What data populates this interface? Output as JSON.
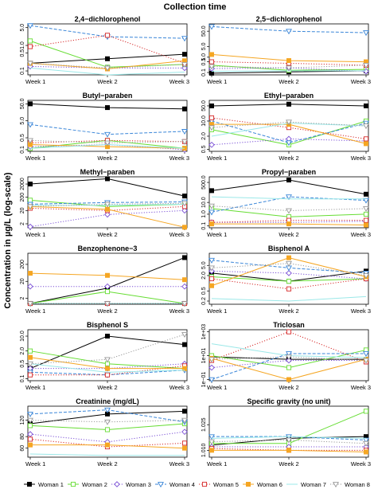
{
  "figure": {
    "title": "Collection time",
    "ylabel": "Concentration in µg/L (log-scale)",
    "x_categories": [
      "Week 1",
      "Week 2",
      "Week 3"
    ]
  },
  "legend": [
    {
      "name": "Woman 1",
      "color": "#000000",
      "marker": "square-filled",
      "dash": "solid"
    },
    {
      "name": "Woman 2",
      "color": "#66dd33",
      "marker": "square-open",
      "dash": "solid"
    },
    {
      "name": "Woman 3",
      "color": "#7a4fd6",
      "marker": "diamond-open",
      "dash": "dotted"
    },
    {
      "name": "Woman 4",
      "color": "#3a86d8",
      "marker": "triangle-down-open",
      "dash": "dashed"
    },
    {
      "name": "Woman 5",
      "color": "#d62828",
      "marker": "square-open",
      "dash": "dotted"
    },
    {
      "name": "Woman 6",
      "color": "#f5a623",
      "marker": "square-filled",
      "dash": "solid"
    },
    {
      "name": "Woman 7",
      "color": "#9be8e8",
      "marker": "none",
      "dash": "solid"
    },
    {
      "name": "Woman 8",
      "color": "#999999",
      "marker": "triangle-down-open",
      "dash": "dotted"
    }
  ],
  "chart_data": [
    {
      "type": "line",
      "title": "2,4−dichlorophenol",
      "ylog": true,
      "ylim": [
        0.07,
        7
      ],
      "yticks": [
        {
          "v": 0.1,
          "label": "0.1"
        },
        {
          "v": 0.5,
          "label": "0.5"
        },
        {
          "v": 1,
          "label": "1.0"
        },
        {
          "v": 5,
          "label": "5.0"
        }
      ],
      "series": [
        {
          "values": [
            0.2,
            0.3,
            0.45
          ]
        },
        {
          "values": [
            1.5,
            0.14,
            0.18
          ]
        },
        {
          "values": [
            0.15,
            0.13,
            0.13
          ]
        },
        {
          "values": [
            6.0,
            2.2,
            1.9
          ]
        },
        {
          "values": [
            0.9,
            2.5,
            0.2
          ]
        },
        {
          "values": [
            0.2,
            0.12,
            0.25
          ]
        },
        {
          "values": [
            0.13,
            0.07,
            0.09
          ]
        },
        {
          "values": [
            0.2,
            0.13,
            0.18
          ]
        }
      ]
    },
    {
      "type": "line",
      "title": "2,5−dichlorophenol",
      "ylog": true,
      "ylim": [
        0.07,
        150
      ],
      "yticks": [
        {
          "v": 0.1,
          "label": "0.1"
        },
        {
          "v": 0.5,
          "label": "0.5"
        },
        {
          "v": 1,
          "label": "1.0"
        },
        {
          "v": 5,
          "label": "5.0"
        },
        {
          "v": 50,
          "label": "50.0"
        }
      ],
      "series": [
        {
          "values": [
            0.09,
            0.11,
            0.13
          ]
        },
        {
          "values": [
            0.3,
            0.14,
            0.16
          ]
        },
        {
          "values": [
            0.18,
            0.2,
            0.12
          ]
        },
        {
          "values": [
            100,
            50,
            40
          ]
        },
        {
          "values": [
            0.5,
            0.4,
            0.3
          ]
        },
        {
          "values": [
            1.5,
            0.6,
            0.5
          ]
        },
        {
          "values": [
            0.12,
            0.13,
            0.13
          ]
        },
        {
          "values": [
            0.25,
            0.2,
            0.3
          ]
        }
      ]
    },
    {
      "type": "line",
      "title": "Butyl−paraben",
      "ylog": true,
      "ylim": [
        0.08,
        80
      ],
      "yticks": [
        {
          "v": 0.1,
          "label": "0.1"
        },
        {
          "v": 0.5,
          "label": "0.5"
        },
        {
          "v": 5,
          "label": "5.0"
        },
        {
          "v": 50,
          "label": "50.0"
        }
      ],
      "series": [
        {
          "values": [
            50,
            30,
            25
          ]
        },
        {
          "values": [
            0.12,
            0.35,
            0.12
          ]
        },
        {
          "values": [
            0.15,
            0.2,
            0.1
          ]
        },
        {
          "values": [
            3.0,
            0.8,
            1.2
          ]
        },
        {
          "values": [
            0.25,
            0.35,
            0.3
          ]
        },
        {
          "values": [
            0.2,
            0.15,
            0.12
          ]
        },
        {
          "values": [
            0.12,
            0.2,
            0.12
          ]
        },
        {
          "values": [
            0.35,
            0.25,
            0.3
          ]
        }
      ]
    },
    {
      "type": "line",
      "title": "Ethyl−paraben",
      "ylog": true,
      "ylim": [
        0.4,
        90
      ],
      "yticks": [
        {
          "v": 0.5,
          "label": "0.5"
        },
        {
          "v": 2,
          "label": "2.0"
        },
        {
          "v": 10,
          "label": "10.0"
        },
        {
          "v": 50,
          "label": "50.0"
        }
      ],
      "series": [
        {
          "values": [
            50,
            60,
            50
          ]
        },
        {
          "values": [
            4,
            0.8,
            10
          ]
        },
        {
          "values": [
            0.8,
            1.5,
            1.2
          ]
        },
        {
          "values": [
            10,
            1.0,
            8
          ]
        },
        {
          "values": [
            14,
            5,
            1.5
          ]
        },
        {
          "values": [
            7,
            7,
            0.9
          ]
        },
        {
          "values": [
            2,
            8,
            6
          ]
        },
        {
          "values": [
            5,
            9,
            6
          ]
        }
      ]
    },
    {
      "type": "line",
      "title": "Methyl−paraben",
      "ylog": true,
      "ylim": [
        1,
        7000
      ],
      "yticks": [
        {
          "v": 2,
          "label": "2"
        },
        {
          "v": 20,
          "label": "20"
        },
        {
          "v": 200,
          "label": "200"
        },
        {
          "v": 2000,
          "label": "2000"
        }
      ],
      "series": [
        {
          "values": [
            2000,
            5000,
            250
          ]
        },
        {
          "values": [
            120,
            40,
            60
          ]
        },
        {
          "values": [
            1.2,
            10,
            20
          ]
        },
        {
          "values": [
            60,
            80,
            90
          ]
        },
        {
          "values": [
            30,
            20,
            40
          ]
        },
        {
          "values": [
            40,
            25,
            1.1
          ]
        },
        {
          "values": [
            50,
            50,
            60
          ]
        },
        {
          "values": [
            40,
            60,
            70
          ]
        }
      ]
    },
    {
      "type": "line",
      "title": "Propyl−paraben",
      "ylog": true,
      "ylim": [
        0.07,
        1500
      ],
      "yticks": [
        {
          "v": 0.1,
          "label": "0.1"
        },
        {
          "v": 1,
          "label": "1.0"
        },
        {
          "v": 10,
          "label": "10.0"
        },
        {
          "v": 500,
          "label": "500.0"
        }
      ],
      "series": [
        {
          "values": [
            100,
            800,
            50
          ]
        },
        {
          "values": [
            3,
            0.6,
            1.0
          ]
        },
        {
          "values": [
            0.2,
            0.2,
            0.25
          ]
        },
        {
          "values": [
            1.5,
            30,
            15
          ]
        },
        {
          "values": [
            0.2,
            0.3,
            0.3
          ]
        },
        {
          "values": [
            0.15,
            0.15,
            0.12
          ]
        },
        {
          "values": [
            30,
            20,
            20
          ]
        },
        {
          "values": [
            5,
            2,
            3
          ]
        }
      ]
    },
    {
      "type": "line",
      "title": "Benzophenone−3",
      "ylog": true,
      "ylim": [
        0.9,
        900
      ],
      "yticks": [
        {
          "v": 2,
          "label": "2"
        },
        {
          "v": 20,
          "label": "20"
        },
        {
          "v": 200,
          "label": "200"
        }
      ],
      "series": [
        {
          "values": [
            1.0,
            8,
            500
          ]
        },
        {
          "values": [
            1.0,
            5,
            1.0
          ]
        },
        {
          "values": [
            10,
            10,
            10
          ]
        },
        {
          "values": [
            1.0,
            1.0,
            1.0
          ]
        },
        {
          "values": [
            1.0,
            1.0,
            1.0
          ]
        },
        {
          "values": [
            60,
            45,
            25
          ]
        },
        {
          "values": [
            1.0,
            1.0,
            1.0
          ]
        },
        {
          "values": [
            1.0,
            1.0,
            1.0
          ]
        }
      ]
    },
    {
      "type": "line",
      "title": "Bisphenol A",
      "ylog": true,
      "ylim": [
        0.15,
        15
      ],
      "yticks": [
        {
          "v": 0.2,
          "label": "0.2"
        },
        {
          "v": 0.5,
          "label": "0.5"
        },
        {
          "v": 2,
          "label": "2.0"
        },
        {
          "v": 5,
          "label": "5.0"
        }
      ],
      "series": [
        {
          "values": [
            2.5,
            1.2,
            3.0
          ]
        },
        {
          "values": [
            1.8,
            1.2,
            1.5
          ]
        },
        {
          "values": [
            3,
            2.5,
            1.5
          ]
        },
        {
          "values": [
            8,
            4,
            2.5
          ]
        },
        {
          "values": [
            1.5,
            0.6,
            1.5
          ]
        },
        {
          "values": [
            0.8,
            10,
            1.8
          ]
        },
        {
          "values": [
            0.25,
            0.2,
            0.3
          ]
        },
        {
          "values": [
            4,
            6,
            2
          ]
        }
      ]
    },
    {
      "type": "line",
      "title": "Bisphenol S",
      "ylog": true,
      "ylim": [
        0.08,
        20
      ],
      "yticks": [
        {
          "v": 0.1,
          "label": "0.1"
        },
        {
          "v": 0.5,
          "label": "0.5"
        },
        {
          "v": 2,
          "label": "2.0"
        },
        {
          "v": 10,
          "label": "10.0"
        }
      ],
      "series": [
        {
          "values": [
            0.3,
            10,
            4
          ]
        },
        {
          "values": [
            2.0,
            0.5,
            0.3
          ]
        },
        {
          "values": [
            0.3,
            0.3,
            0.5
          ]
        },
        {
          "values": [
            0.2,
            0.15,
            0.25
          ]
        },
        {
          "values": [
            0.15,
            0.15,
            0.4
          ]
        },
        {
          "values": [
            1.0,
            0.3,
            0.3
          ]
        },
        {
          "values": [
            0.5,
            0.2,
            0.25
          ]
        },
        {
          "values": [
            0.5,
            0.8,
            12
          ]
        }
      ]
    },
    {
      "type": "line",
      "title": "Triclosan",
      "ylog": true,
      "ylim": [
        0.08,
        1500
      ],
      "yticks": [
        {
          "v": 0.1,
          "label": "1e−01"
        },
        {
          "v": 10,
          "label": "1e+01"
        },
        {
          "v": 1000,
          "label": "1e+03"
        }
      ],
      "series": [
        {
          "values": [
            8,
            5,
            5
          ]
        },
        {
          "values": [
            10,
            1,
            30
          ]
        },
        {
          "values": [
            1,
            4,
            4
          ]
        },
        {
          "values": [
            0.1,
            15,
            15
          ]
        },
        {
          "values": [
            4,
            1000,
            3
          ]
        },
        {
          "values": [
            6,
            0.1,
            5
          ]
        },
        {
          "values": [
            100,
            10,
            7
          ]
        },
        {
          "values": [
            5,
            8,
            4
          ]
        }
      ]
    },
    {
      "type": "line",
      "title": "Creatinine (mg/dL)",
      "ylog": true,
      "ylim": [
        48,
        170
      ],
      "yticks": [
        {
          "v": 60,
          "label": "60"
        },
        {
          "v": 80,
          "label": "80"
        },
        {
          "v": 120,
          "label": "120"
        }
      ],
      "series": [
        {
          "values": [
            110,
            140,
            150
          ]
        },
        {
          "values": [
            105,
            95,
            110
          ]
        },
        {
          "values": [
            85,
            70,
            90
          ]
        },
        {
          "values": [
            140,
            155,
            115
          ]
        },
        {
          "values": [
            75,
            62,
            68
          ]
        },
        {
          "values": [
            65,
            65,
            60
          ]
        },
        {
          "values": [
            52,
            50,
            50
          ]
        },
        {
          "values": [
            120,
            115,
            120
          ]
        }
      ]
    },
    {
      "type": "line",
      "title": "Specific gravity (no unit)",
      "ylog": true,
      "ylim": [
        1.006,
        1.036
      ],
      "yticks": [
        {
          "v": 1.01,
          "label": "1.010"
        },
        {
          "v": 1.025,
          "label": "1.025"
        }
      ],
      "series": [
        {
          "values": [
            1.013,
            1.017,
            1.018
          ]
        },
        {
          "values": [
            1.014,
            1.014,
            1.033
          ]
        },
        {
          "values": [
            1.012,
            1.012,
            1.012
          ]
        },
        {
          "values": [
            1.018,
            1.018,
            1.016
          ]
        },
        {
          "values": [
            1.011,
            1.01,
            1.01
          ]
        },
        {
          "values": [
            1.01,
            1.01,
            1.009
          ]
        },
        {
          "values": [
            1.017,
            1.018,
            1.017
          ]
        },
        {
          "values": [
            1.015,
            1.016,
            1.014
          ]
        }
      ]
    }
  ]
}
